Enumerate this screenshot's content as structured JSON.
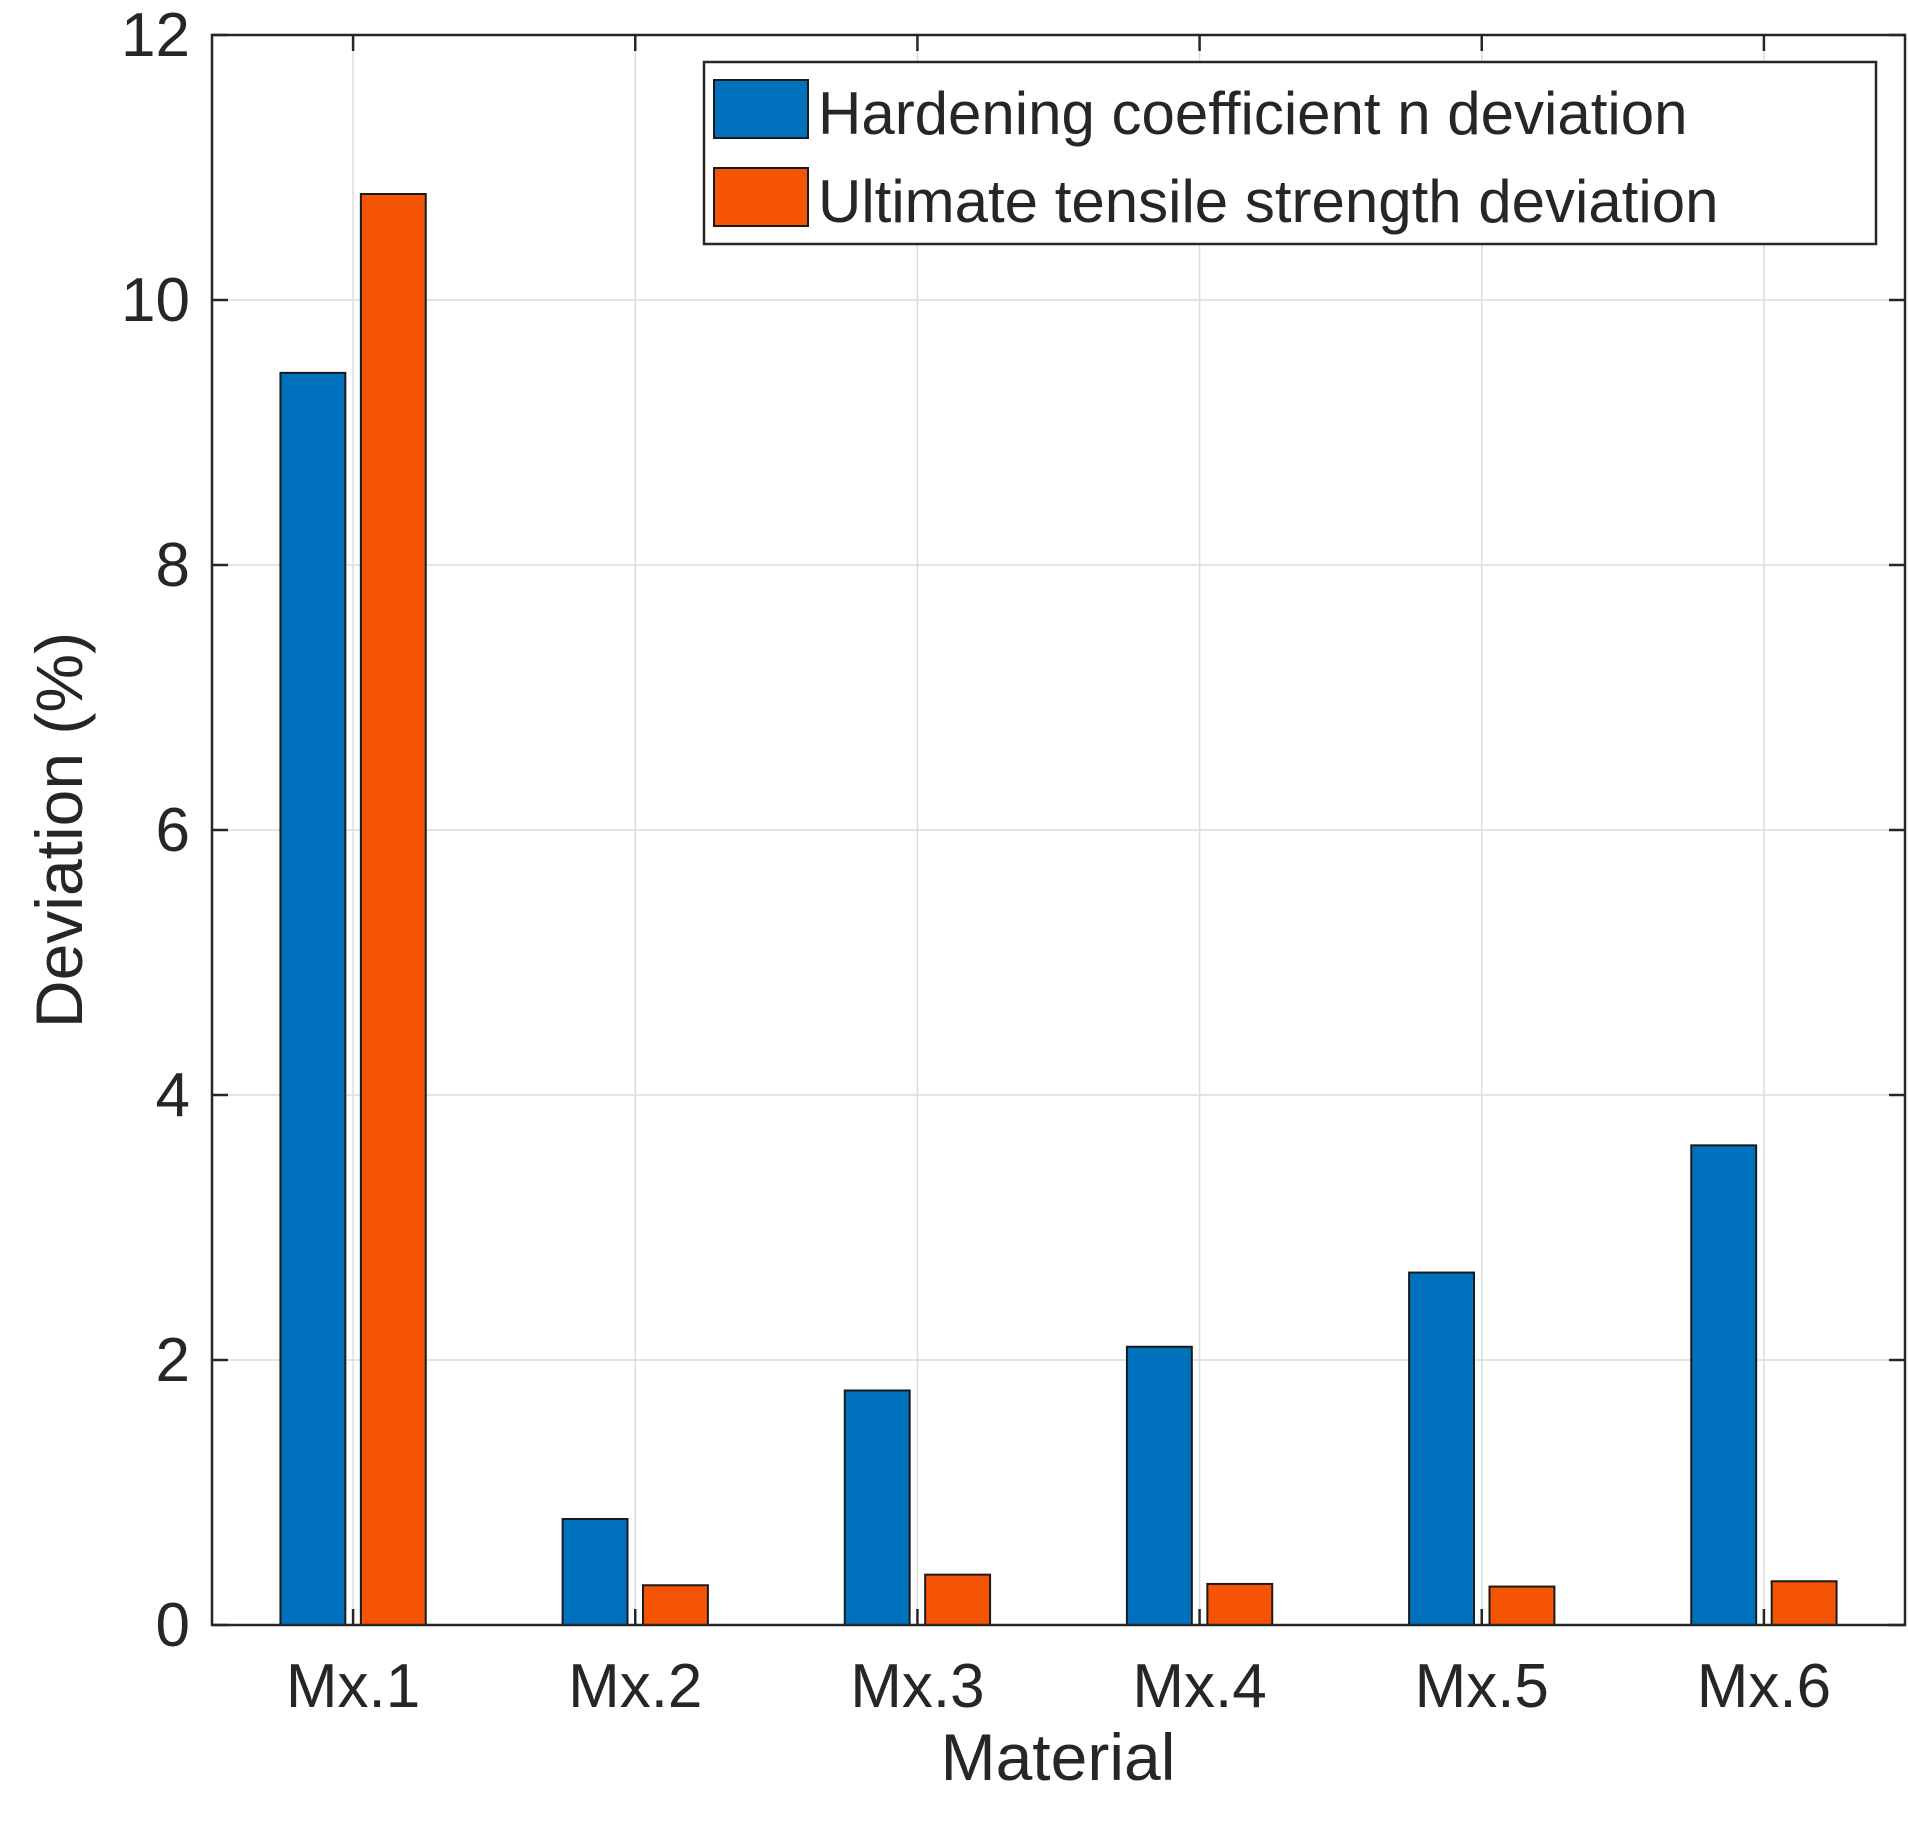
{
  "chart_data": {
    "type": "bar",
    "title": "",
    "xlabel": "Material",
    "ylabel": "Deviation (%)",
    "categories": [
      "Mx.1",
      "Mx.2",
      "Mx.3",
      "Mx.4",
      "Mx.5",
      "Mx.6"
    ],
    "series": [
      {
        "name": "Hardening coefficient n deviation",
        "color": "#0072BD",
        "values": [
          9.45,
          0.8,
          1.77,
          2.1,
          2.66,
          3.62
        ]
      },
      {
        "name": "Ultimate tensile strength deviation",
        "color": "#F55405",
        "values": [
          10.8,
          0.3,
          0.38,
          0.31,
          0.29,
          0.33
        ]
      }
    ],
    "ylim": [
      0,
      12
    ],
    "yticks": [
      "0",
      "2",
      "4",
      "6",
      "8",
      "10",
      "12"
    ],
    "grid": true,
    "legend_position": "top-right"
  }
}
